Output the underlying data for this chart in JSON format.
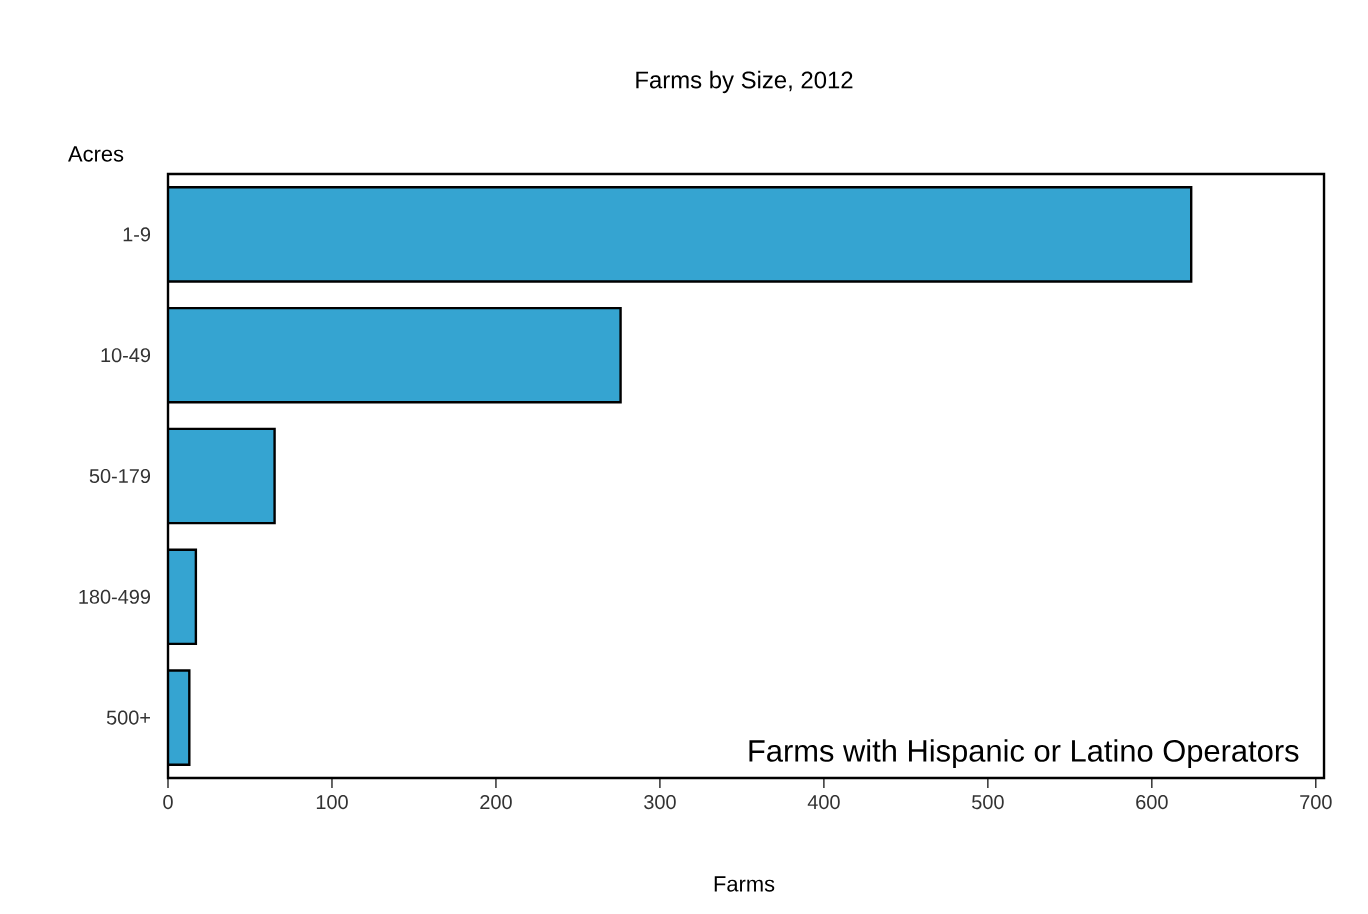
{
  "chart_data": {
    "type": "bar",
    "orientation": "horizontal",
    "title": "Farms by Size, 2012",
    "ylabel": "Acres",
    "xlabel": "Farms",
    "categories": [
      "1-9",
      "10-49",
      "50-179",
      "180-499",
      "500+"
    ],
    "values": [
      624,
      276,
      65,
      17,
      13
    ],
    "color": "#35a4d1",
    "xlim": [
      0,
      705
    ],
    "xticks": [
      0,
      100,
      200,
      300,
      400,
      500,
      600,
      700
    ],
    "grid": false,
    "annotations": [
      "Farms with Hispanic or Latino Operators"
    ]
  }
}
